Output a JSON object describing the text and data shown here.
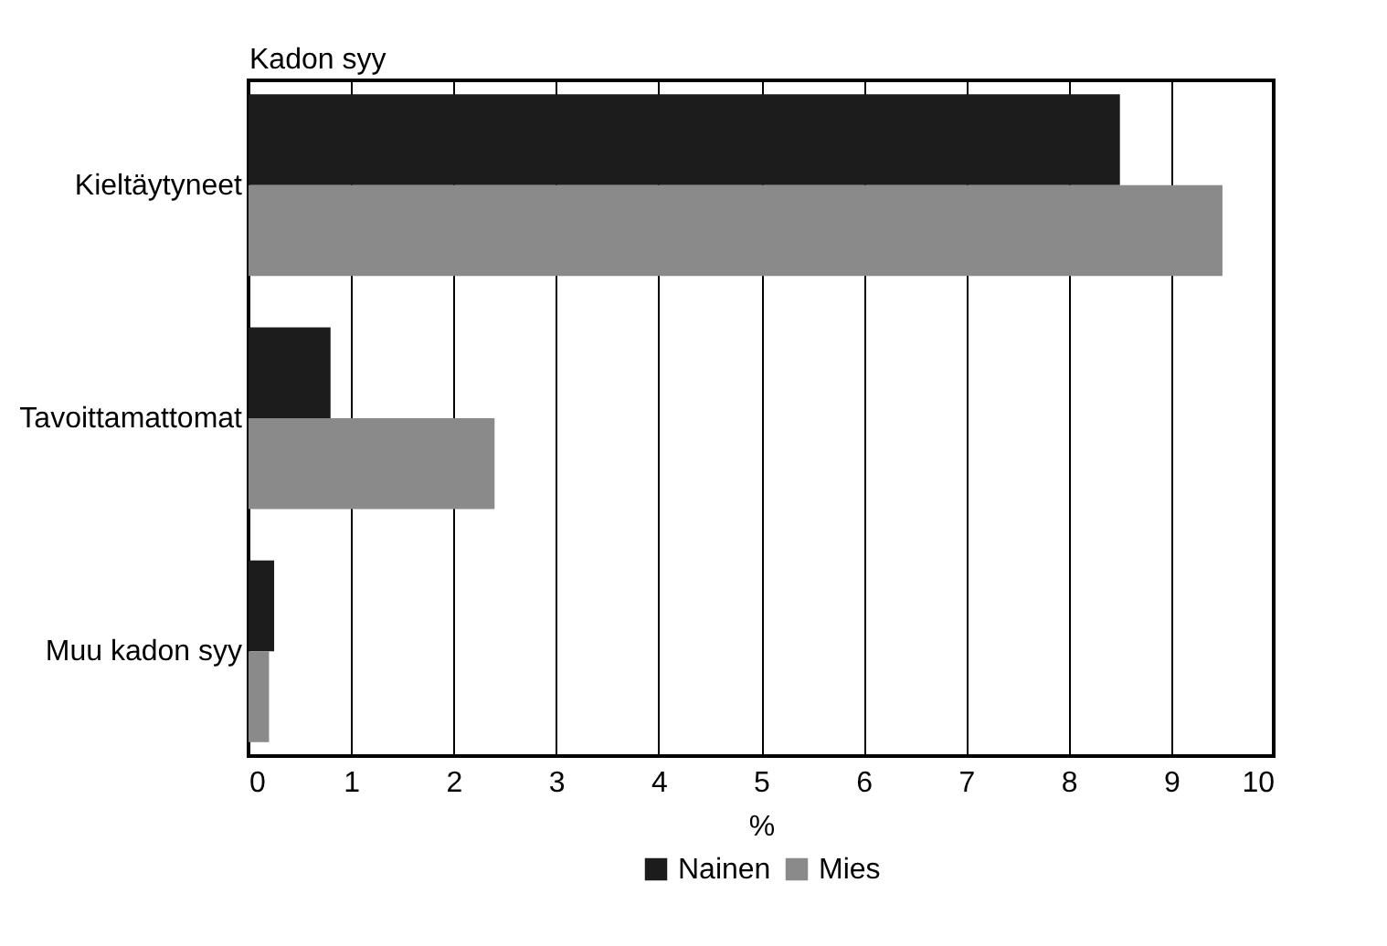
{
  "chart_data": {
    "type": "bar",
    "orientation": "horizontal",
    "ylabel": "Kadon syy",
    "xlabel": "%",
    "categories": [
      "Kieltäytyneet",
      "Tavoittamattomat",
      "Muu kadon syy"
    ],
    "series": [
      {
        "name": "Nainen",
        "color": "#1c1c1c",
        "values": [
          8.5,
          0.8,
          0.25
        ]
      },
      {
        "name": "Mies",
        "color": "#8a8a8a",
        "values": [
          9.5,
          2.4,
          0.2
        ]
      }
    ],
    "xlim": [
      0,
      10
    ],
    "xticks": [
      0,
      1,
      2,
      3,
      4,
      5,
      6,
      7,
      8,
      9,
      10
    ],
    "grid": "x",
    "legend": "bottom"
  }
}
